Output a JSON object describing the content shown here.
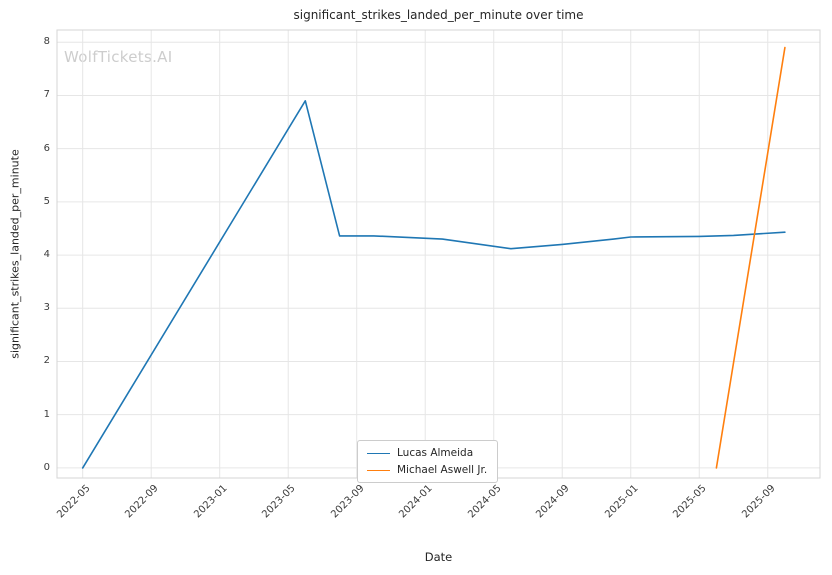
{
  "watermark": {
    "text": "WolfTickets.AI",
    "color": "#cdcdcd"
  },
  "chart_data": {
    "type": "line",
    "title": "significant_strikes_landed_per_minute over time",
    "xlabel": "Date",
    "ylabel": "significant_strikes_landed_per_minute",
    "x_tick_labels": [
      "2022-05",
      "2022-09",
      "2023-01",
      "2023-05",
      "2023-09",
      "2024-01",
      "2024-05",
      "2024-09",
      "2025-01",
      "2025-05",
      "2025-09"
    ],
    "y_ticks": [
      0,
      1,
      2,
      3,
      4,
      5,
      6,
      7,
      8
    ],
    "ylim": [
      -0.2,
      8.25
    ],
    "grid": true,
    "grid_color": "#e6e6e6",
    "border_color": "#d5d5d5",
    "legend_position": "bottom-center",
    "series": [
      {
        "name": "Lucas Almeida",
        "color": "#1f77b4",
        "points": [
          [
            "2022-05",
            0.0
          ],
          [
            "2023-06",
            6.9
          ],
          [
            "2023-08",
            4.36
          ],
          [
            "2023-10",
            4.36
          ],
          [
            "2024-02",
            4.3
          ],
          [
            "2024-06",
            4.12
          ],
          [
            "2024-09",
            4.2
          ],
          [
            "2024-12",
            4.3
          ],
          [
            "2025-01",
            4.34
          ],
          [
            "2025-05",
            4.35
          ],
          [
            "2025-07",
            4.37
          ],
          [
            "2025-10",
            4.43
          ]
        ]
      },
      {
        "name": "Michael Aswell Jr.",
        "color": "#ff7f0e",
        "points": [
          [
            "2025-06",
            0.0
          ],
          [
            "2025-10",
            7.9
          ]
        ]
      }
    ]
  }
}
